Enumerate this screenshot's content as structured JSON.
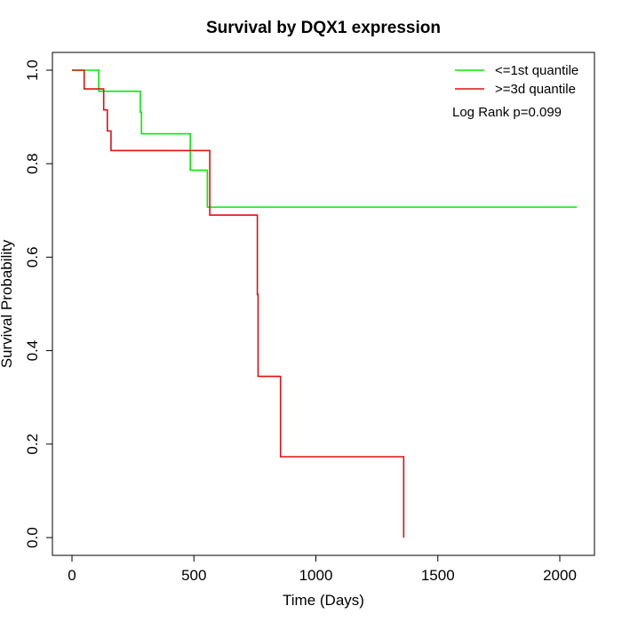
{
  "chart_data": {
    "type": "line",
    "title": "Survival by DQX1 expression",
    "xlabel": "Time (Days)",
    "ylabel": "Survival Probability",
    "xlim": [
      0,
      2070
    ],
    "ylim": [
      0,
      1.0
    ],
    "x_ticks": [
      0,
      500,
      1000,
      1500,
      2000
    ],
    "x_tick_labels": [
      "0",
      "500",
      "1000",
      "1500",
      "2000"
    ],
    "y_ticks": [
      0.0,
      0.2,
      0.4,
      0.6,
      0.8,
      1.0
    ],
    "y_tick_labels": [
      "0.0",
      "0.2",
      "0.4",
      "0.6",
      "0.8",
      "1.0"
    ],
    "grid": false,
    "legend_position": "top-right",
    "annotation": "Log Rank p=0.099",
    "series": [
      {
        "name": "<=1st quantile",
        "color": "#00ee00",
        "steps": [
          [
            0,
            1.0
          ],
          [
            110,
            0.955
          ],
          [
            280,
            0.91
          ],
          [
            285,
            0.864
          ],
          [
            485,
            0.786
          ],
          [
            555,
            0.707
          ],
          [
            2070,
            0.707
          ]
        ]
      },
      {
        "name": ">=3d quantile",
        "color": "#dd1111",
        "steps": [
          [
            0,
            1.0
          ],
          [
            50,
            0.96
          ],
          [
            130,
            0.915
          ],
          [
            145,
            0.87
          ],
          [
            160,
            0.828
          ],
          [
            565,
            0.69
          ],
          [
            760,
            0.52
          ],
          [
            763,
            0.345
          ],
          [
            855,
            0.173
          ],
          [
            1360,
            0.0
          ]
        ]
      }
    ]
  }
}
